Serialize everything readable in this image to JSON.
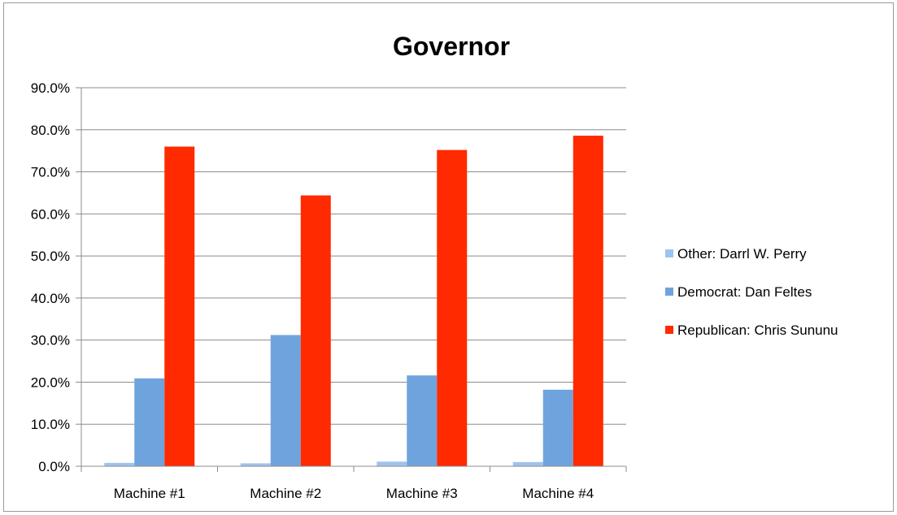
{
  "chart_data": {
    "type": "bar",
    "title": "Governor",
    "xlabel": "",
    "ylabel": "",
    "ylim": [
      0,
      90
    ],
    "y_ticks": [
      "0.0%",
      "10.0%",
      "20.0%",
      "30.0%",
      "40.0%",
      "50.0%",
      "60.0%",
      "70.0%",
      "80.0%",
      "90.0%"
    ],
    "grid": true,
    "legend_position": "right",
    "categories": [
      "Machine #1",
      "Machine #2",
      "Machine #3",
      "Machine #4"
    ],
    "series": [
      {
        "name": "Other: Darrl W. Perry",
        "color": "#9dc3f0",
        "values": [
          0.8,
          0.7,
          1.1,
          1.0
        ]
      },
      {
        "name": "Democrat: Dan Feltes",
        "color": "#6fa3de",
        "values": [
          20.9,
          31.2,
          21.6,
          18.2
        ]
      },
      {
        "name": "Republican: Chris Sununu",
        "color": "#ff2a00",
        "values": [
          76.0,
          64.4,
          75.2,
          78.6
        ]
      }
    ]
  }
}
